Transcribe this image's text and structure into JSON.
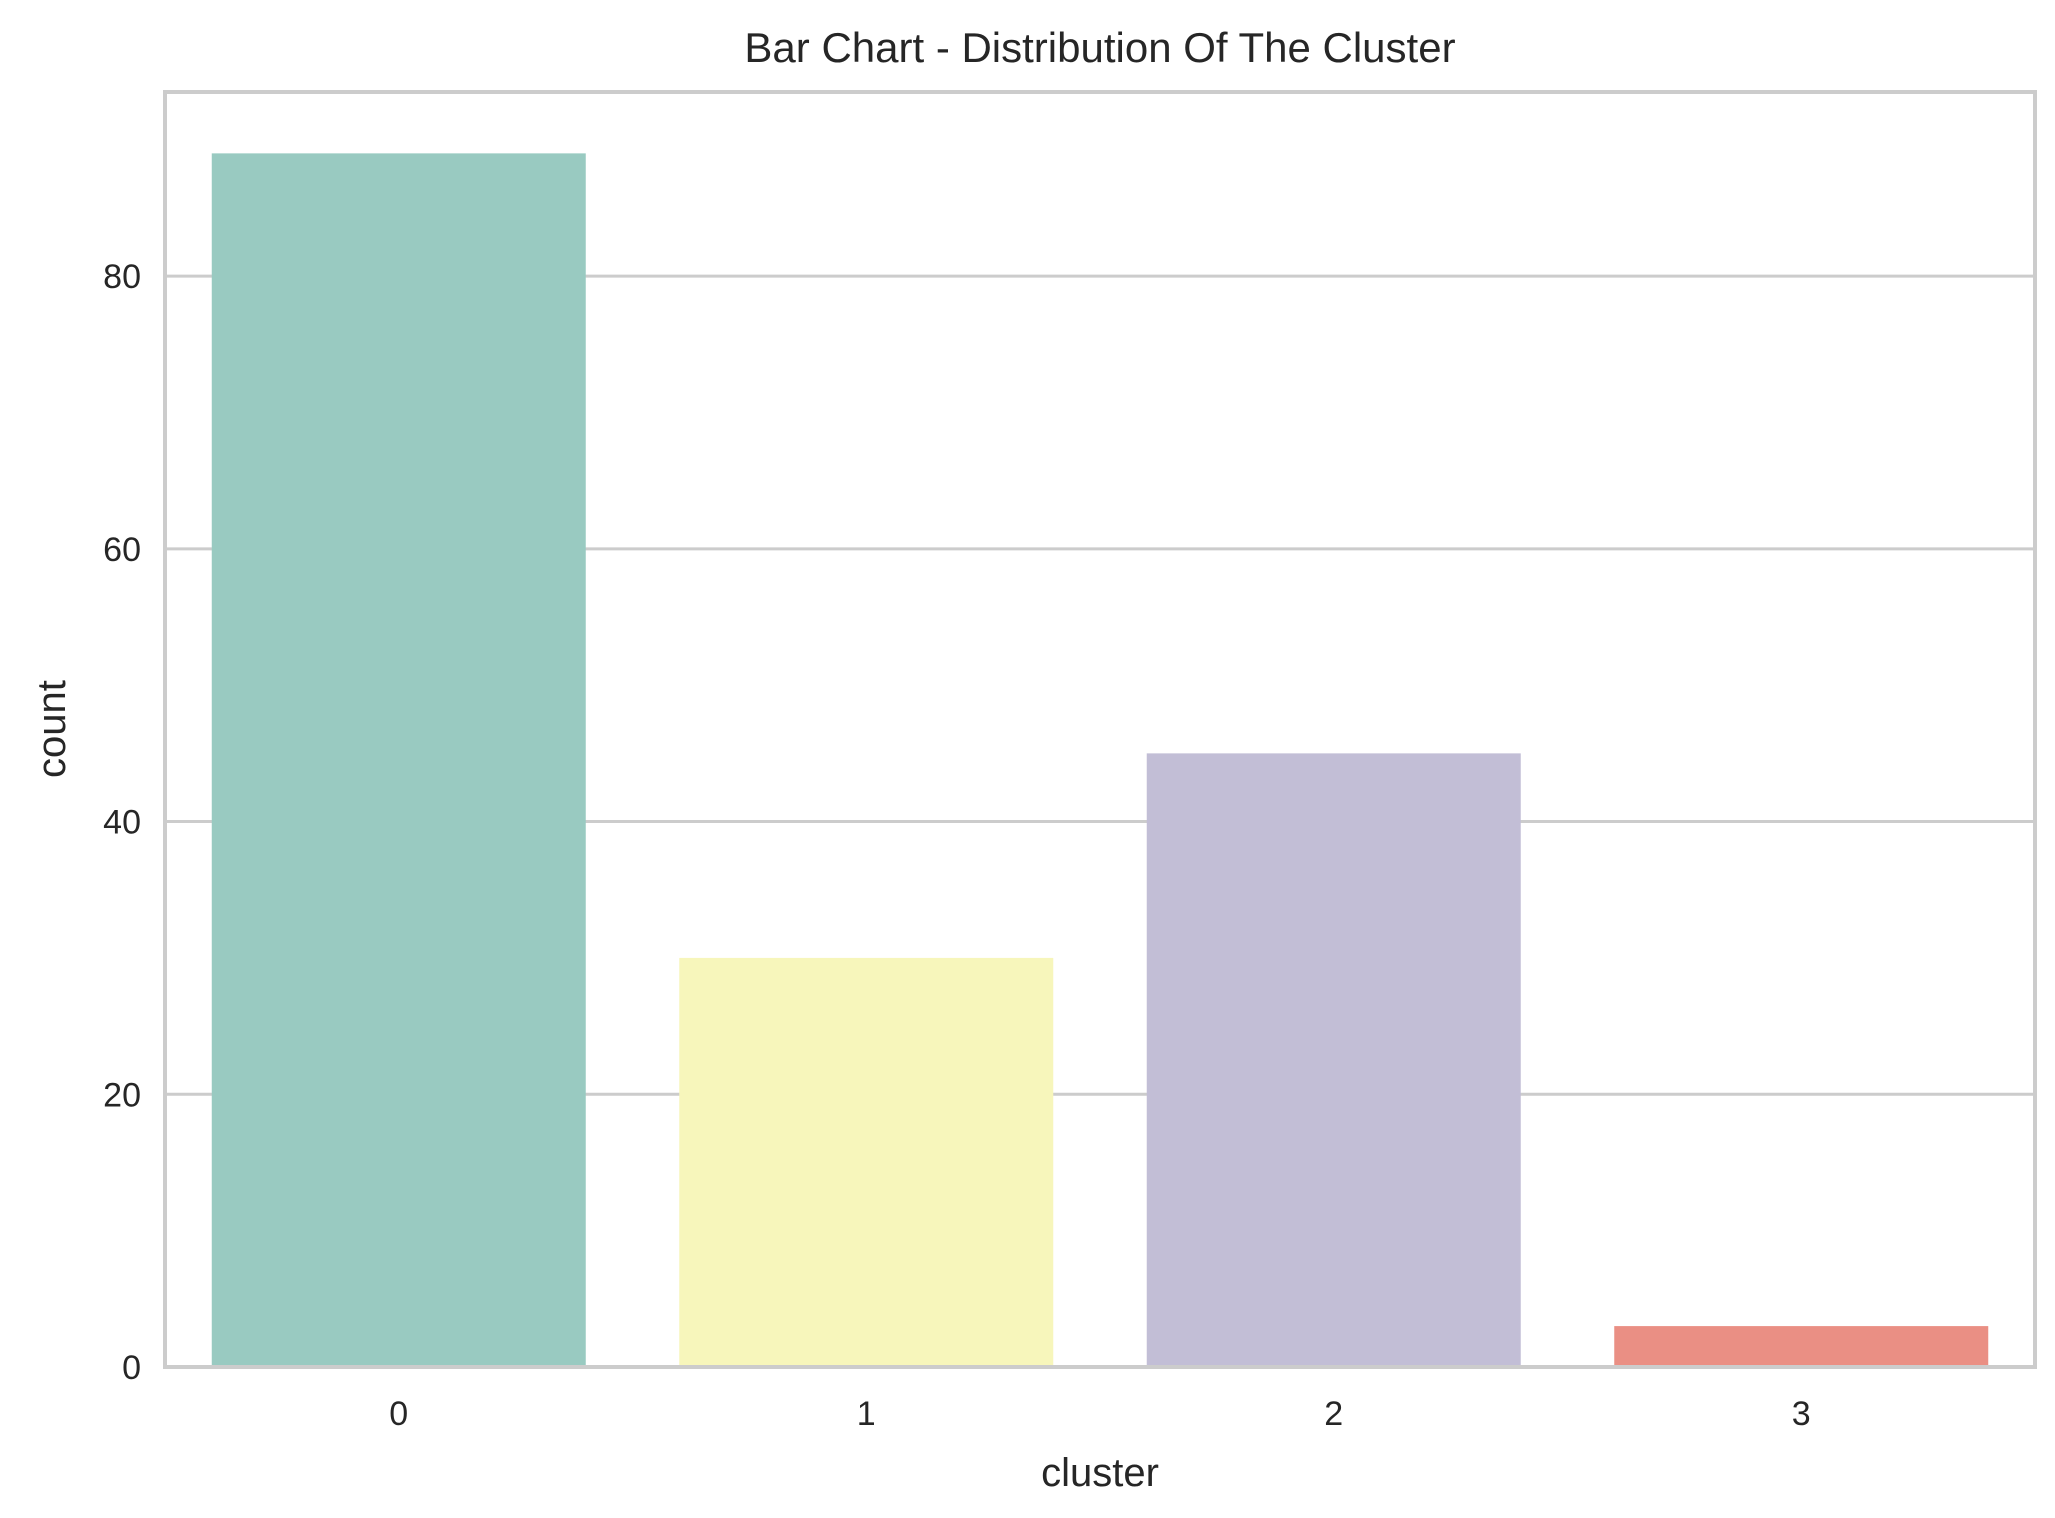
{
  "chart_data": {
    "type": "bar",
    "title": "Bar Chart - Distribution Of The Cluster",
    "xlabel": "cluster",
    "ylabel": "count",
    "categories": [
      "0",
      "1",
      "2",
      "3"
    ],
    "values": [
      89,
      30,
      45,
      3
    ],
    "ylim": [
      0,
      93.5
    ],
    "yticks": [
      "0",
      "20",
      "40",
      "60",
      "80"
    ],
    "colors": [
      "#99cac1",
      "#f7f6bb",
      "#c2bed6",
      "#ea8f84"
    ],
    "grid": true,
    "grid_color": "#cccccc",
    "legend": false
  }
}
